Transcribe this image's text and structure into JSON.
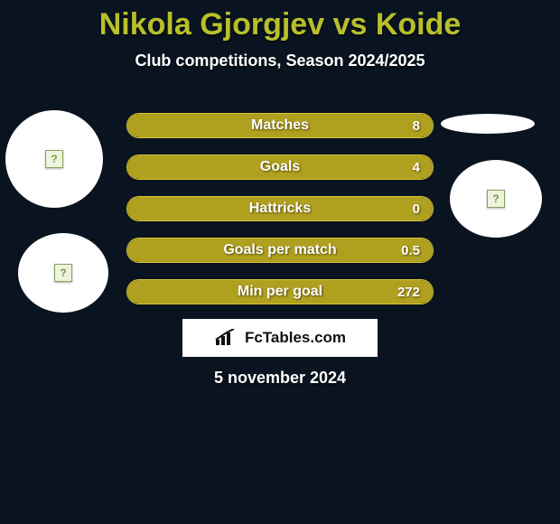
{
  "title": {
    "text": "Nikola Gjorgjev vs Koide",
    "fontsize": 34,
    "color": "#b8bf2b"
  },
  "subtitle": {
    "text": "Club competitions, Season 2024/2025",
    "fontsize": 18,
    "color": "#ffffff"
  },
  "background_color": "#0a1420",
  "stats": {
    "items": [
      {
        "label": "Matches",
        "value": "8",
        "fill_pct": 100
      },
      {
        "label": "Goals",
        "value": "4",
        "fill_pct": 100
      },
      {
        "label": "Hattricks",
        "value": "0",
        "fill_pct": 100
      },
      {
        "label": "Goals per match",
        "value": "0.5",
        "fill_pct": 100
      },
      {
        "label": "Min per goal",
        "value": "272",
        "fill_pct": 100
      }
    ],
    "pill": {
      "bg_color": "#b0a01f",
      "border_color": "#d6c437",
      "label_fontsize": 16,
      "value_fontsize": 15
    }
  },
  "logo": {
    "text": "FcTables.com",
    "fontsize": 17
  },
  "date": {
    "text": "5 november 2024",
    "fontsize": 18
  },
  "decor": {
    "placeholder_glyph": "?"
  }
}
